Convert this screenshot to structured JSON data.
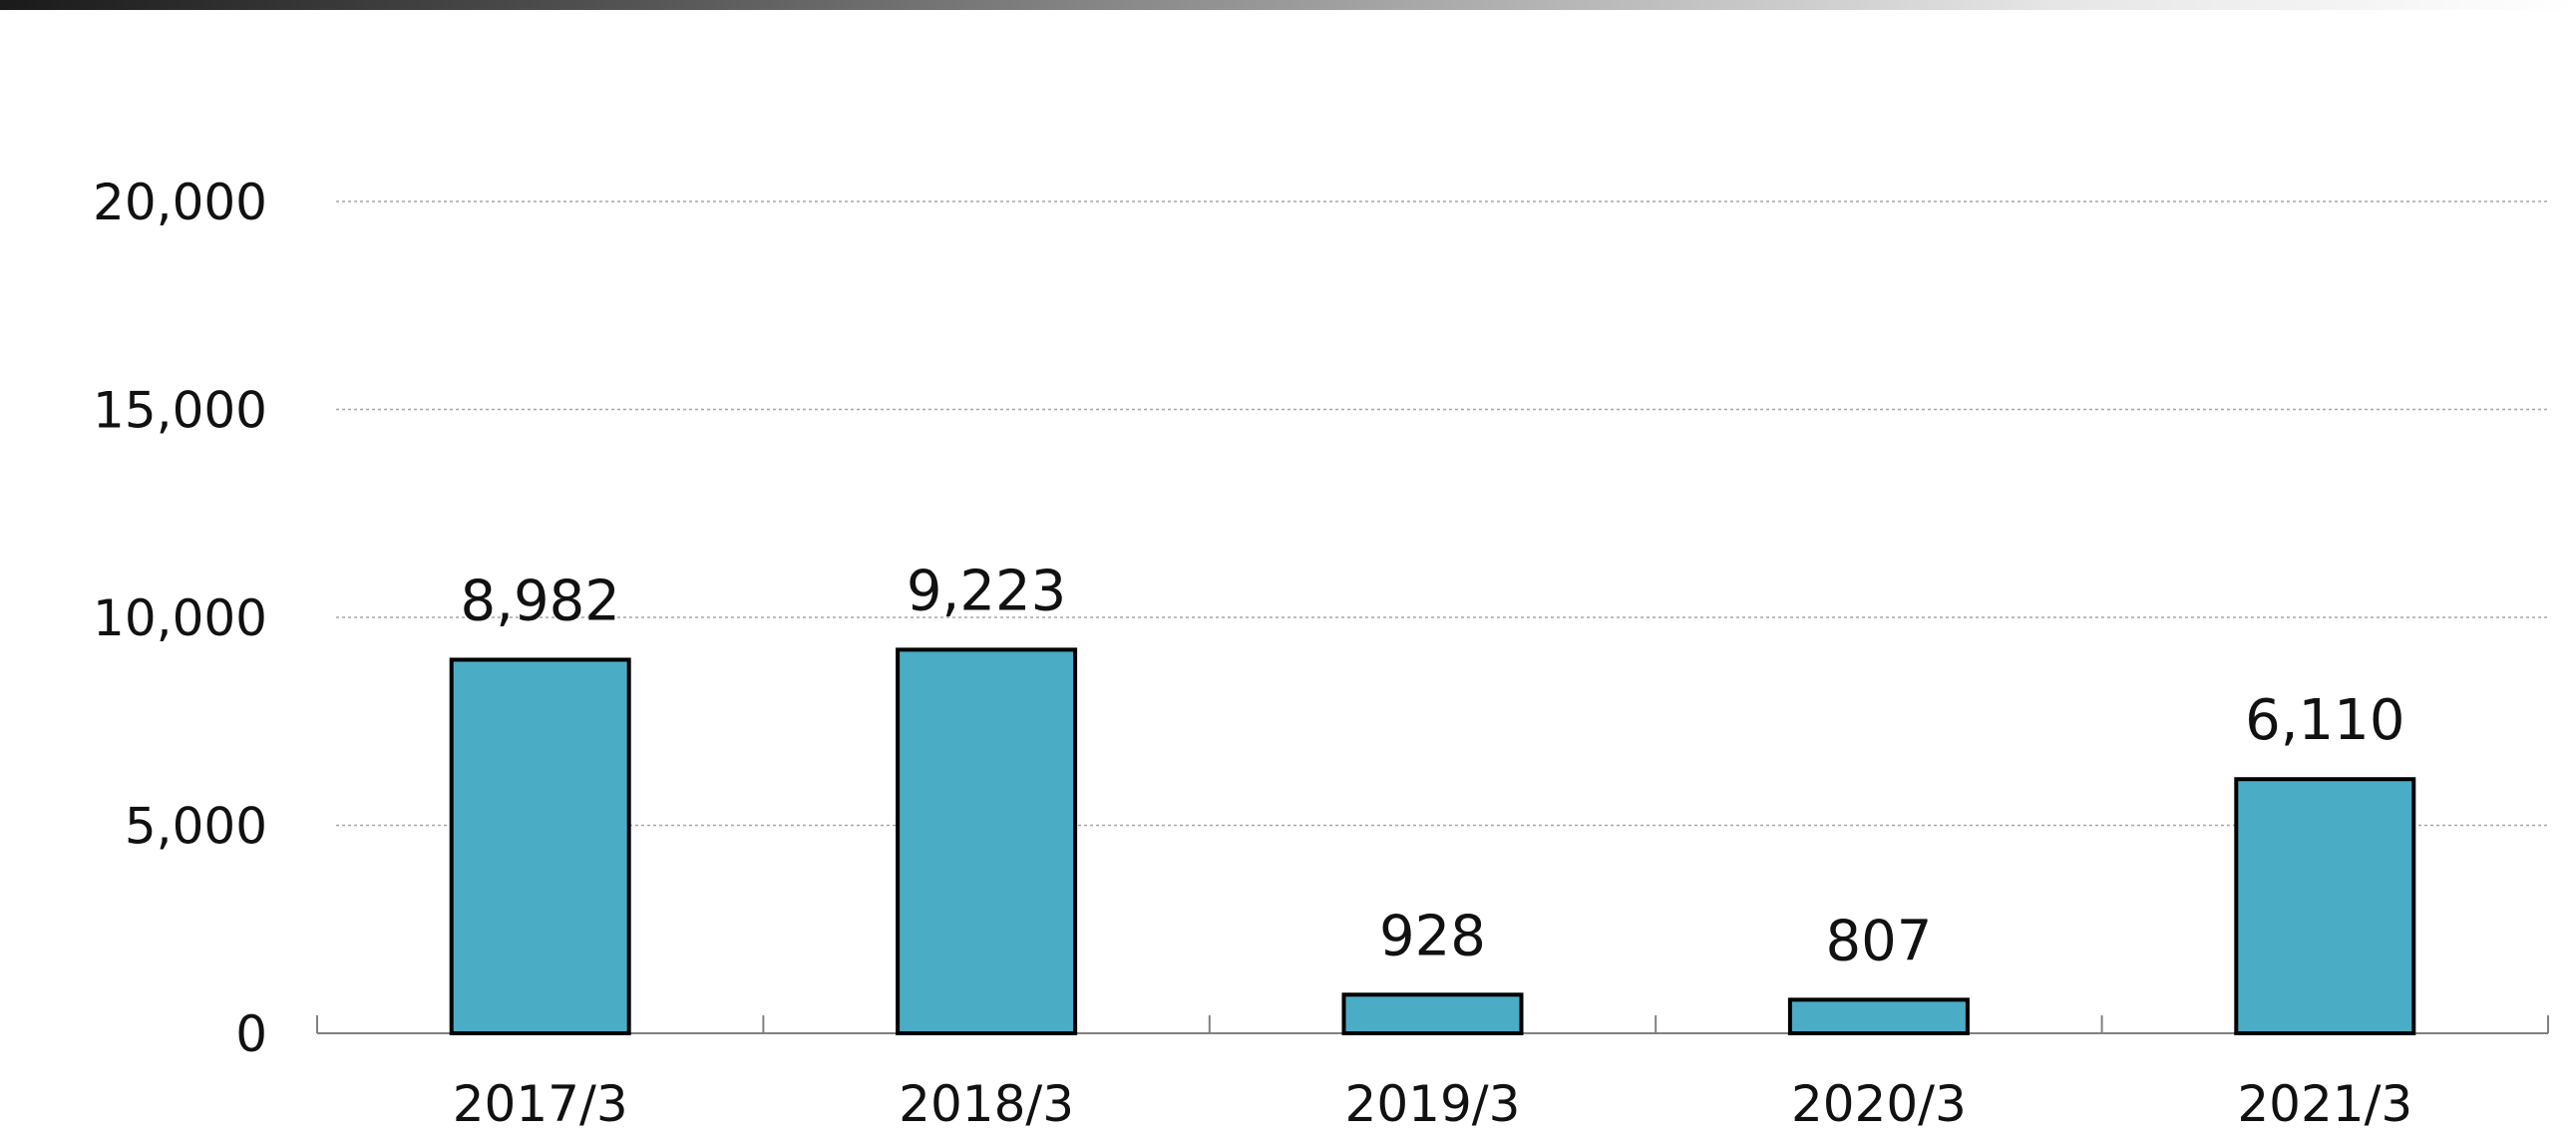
{
  "chart_data": {
    "type": "bar",
    "categories": [
      "2017/3",
      "2018/3",
      "2019/3",
      "2020/3",
      "2021/3"
    ],
    "values": [
      8982,
      9223,
      928,
      807,
      6110
    ],
    "data_labels": [
      "8,982",
      "9,223",
      "928",
      "807",
      "6,110"
    ],
    "yticks": [
      0,
      5000,
      10000,
      15000,
      20000
    ],
    "ytick_labels": [
      "0",
      "5,000",
      "10,000",
      "15,000",
      "20,000"
    ],
    "ylim": [
      0,
      20000
    ],
    "grid": true,
    "legend": "none",
    "bar_color": "#4BACC6",
    "bar_edge_color": "#000000",
    "gridline_color": "#A6A6A6",
    "axis_color": "#808080"
  }
}
